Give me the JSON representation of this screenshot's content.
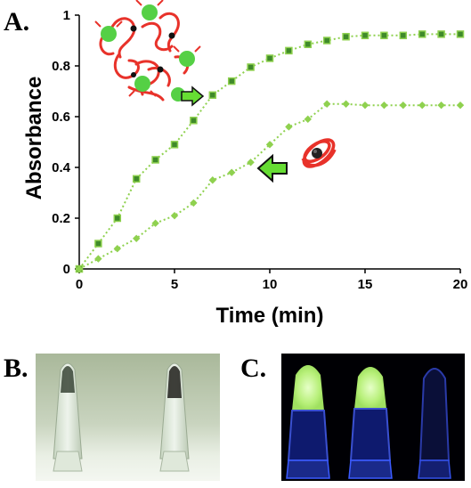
{
  "panels": {
    "a_label": "A.",
    "b_label": "B.",
    "c_label": "C."
  },
  "chart_data": {
    "type": "line",
    "xlabel": "Time (min)",
    "ylabel": "Absorbance",
    "xlim": [
      0,
      20
    ],
    "ylim": [
      0,
      1
    ],
    "xticks": [
      "0",
      "5",
      "10",
      "15",
      "20"
    ],
    "yticks": [
      "0",
      "0.2",
      "0.4",
      "0.6",
      "0.8",
      "1"
    ],
    "grid": false,
    "legend": "none",
    "series": [
      {
        "marker": "square",
        "color": "#8fd14f",
        "marker_fill": "#3f8a2a",
        "x": [
          0,
          1,
          2,
          3,
          4,
          5,
          6,
          7,
          8,
          9,
          10,
          11,
          12,
          13,
          14,
          15,
          16,
          17,
          18,
          19,
          20
        ],
        "y": [
          0,
          0.1,
          0.2,
          0.355,
          0.43,
          0.49,
          0.585,
          0.685,
          0.74,
          0.795,
          0.83,
          0.86,
          0.885,
          0.9,
          0.915,
          0.92,
          0.92,
          0.92,
          0.925,
          0.925,
          0.925
        ]
      },
      {
        "marker": "diamond",
        "color": "#8fd14f",
        "marker_fill": "#8fd14f",
        "x": [
          0,
          1,
          2,
          3,
          4,
          5,
          6,
          7,
          8,
          9,
          10,
          11,
          12,
          13,
          14,
          15,
          16,
          17,
          18,
          19,
          20
        ],
        "y": [
          0,
          0.04,
          0.08,
          0.12,
          0.18,
          0.21,
          0.26,
          0.35,
          0.38,
          0.42,
          0.49,
          0.56,
          0.59,
          0.65,
          0.65,
          0.645,
          0.645,
          0.645,
          0.645,
          0.645,
          0.645
        ]
      }
    ]
  },
  "colors": {
    "curve": "#8fd14f",
    "square_marker": "#3f8a2a",
    "arrow": "#66dd33",
    "dna": "#e8322a",
    "bead": "#55d045"
  }
}
